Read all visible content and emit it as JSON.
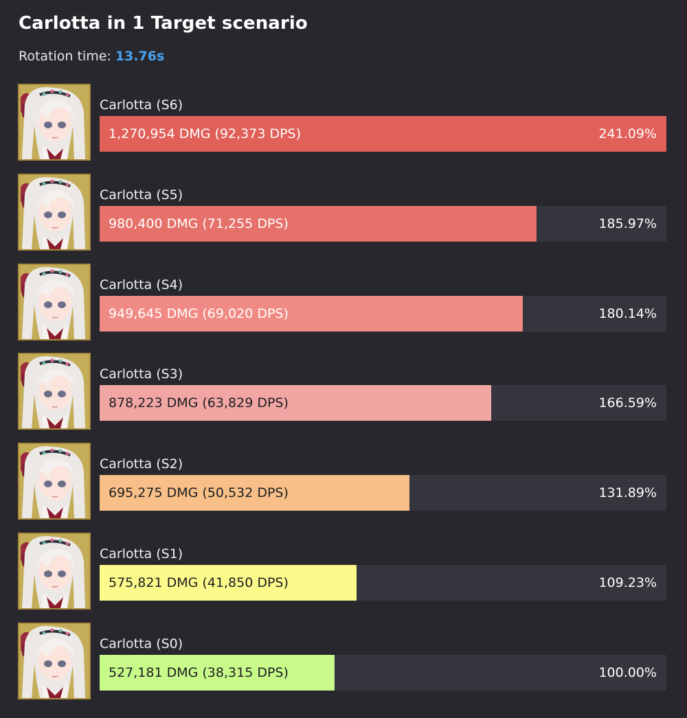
{
  "header": {
    "title": "Carlotta in 1 Target scenario",
    "rotation_label": "Rotation time:",
    "rotation_value": "13.76s"
  },
  "chart_data": {
    "type": "bar",
    "orientation": "horizontal",
    "title": "Carlotta in 1 Target scenario",
    "max_value": 1270954,
    "rows": [
      {
        "label": "Carlotta (S6)",
        "dmg": 1270954,
        "bar_text": "1,270,954 DMG (92,373 DPS)",
        "pct": "241.09%",
        "color": "#e1605a",
        "text_dark": false
      },
      {
        "label": "Carlotta (S5)",
        "dmg": 980400,
        "bar_text": "980,400 DMG (71,255 DPS)",
        "pct": "185.97%",
        "color": "#e6706a",
        "text_dark": false
      },
      {
        "label": "Carlotta (S4)",
        "dmg": 949645,
        "bar_text": "949,645 DMG (69,020 DPS)",
        "pct": "180.14%",
        "color": "#f08a84",
        "text_dark": false
      },
      {
        "label": "Carlotta (S3)",
        "dmg": 878223,
        "bar_text": "878,223 DMG (63,829 DPS)",
        "pct": "166.59%",
        "color": "#f2a6a4",
        "text_dark": true
      },
      {
        "label": "Carlotta (S2)",
        "dmg": 695275,
        "bar_text": "695,275 DMG (50,532 DPS)",
        "pct": "131.89%",
        "color": "#f8c088",
        "text_dark": true
      },
      {
        "label": "Carlotta (S1)",
        "dmg": 575821,
        "bar_text": "575,821 DMG (41,850 DPS)",
        "pct": "109.23%",
        "color": "#fbfa8a",
        "text_dark": true
      },
      {
        "label": "Carlotta (S0)",
        "dmg": 527181,
        "bar_text": "527,181 DMG (38,315 DPS)",
        "pct": "100.00%",
        "color": "#c8fa8a",
        "text_dark": true
      }
    ]
  }
}
